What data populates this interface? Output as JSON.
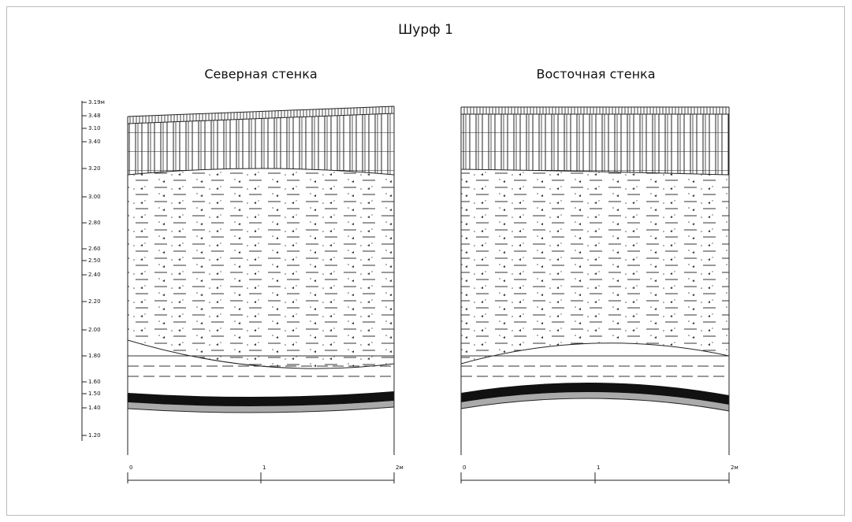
{
  "title": "Шурф 1",
  "depth_scale": {
    "labels": [
      "3.19м",
      "3.48",
      "3.10",
      "3.40",
      "3.20",
      "3.00",
      "2.80",
      "2.60",
      "2.50",
      "2.40",
      "2.20",
      "2.00",
      "1.80",
      "1.60",
      "1.50",
      "1.40",
      "1.20"
    ]
  },
  "panels": [
    {
      "title": "Северная стенка",
      "scale": [
        "0",
        "1",
        "2м"
      ]
    },
    {
      "title": "Восточная стенка",
      "scale": [
        "0",
        "1",
        "2м"
      ]
    }
  ]
}
